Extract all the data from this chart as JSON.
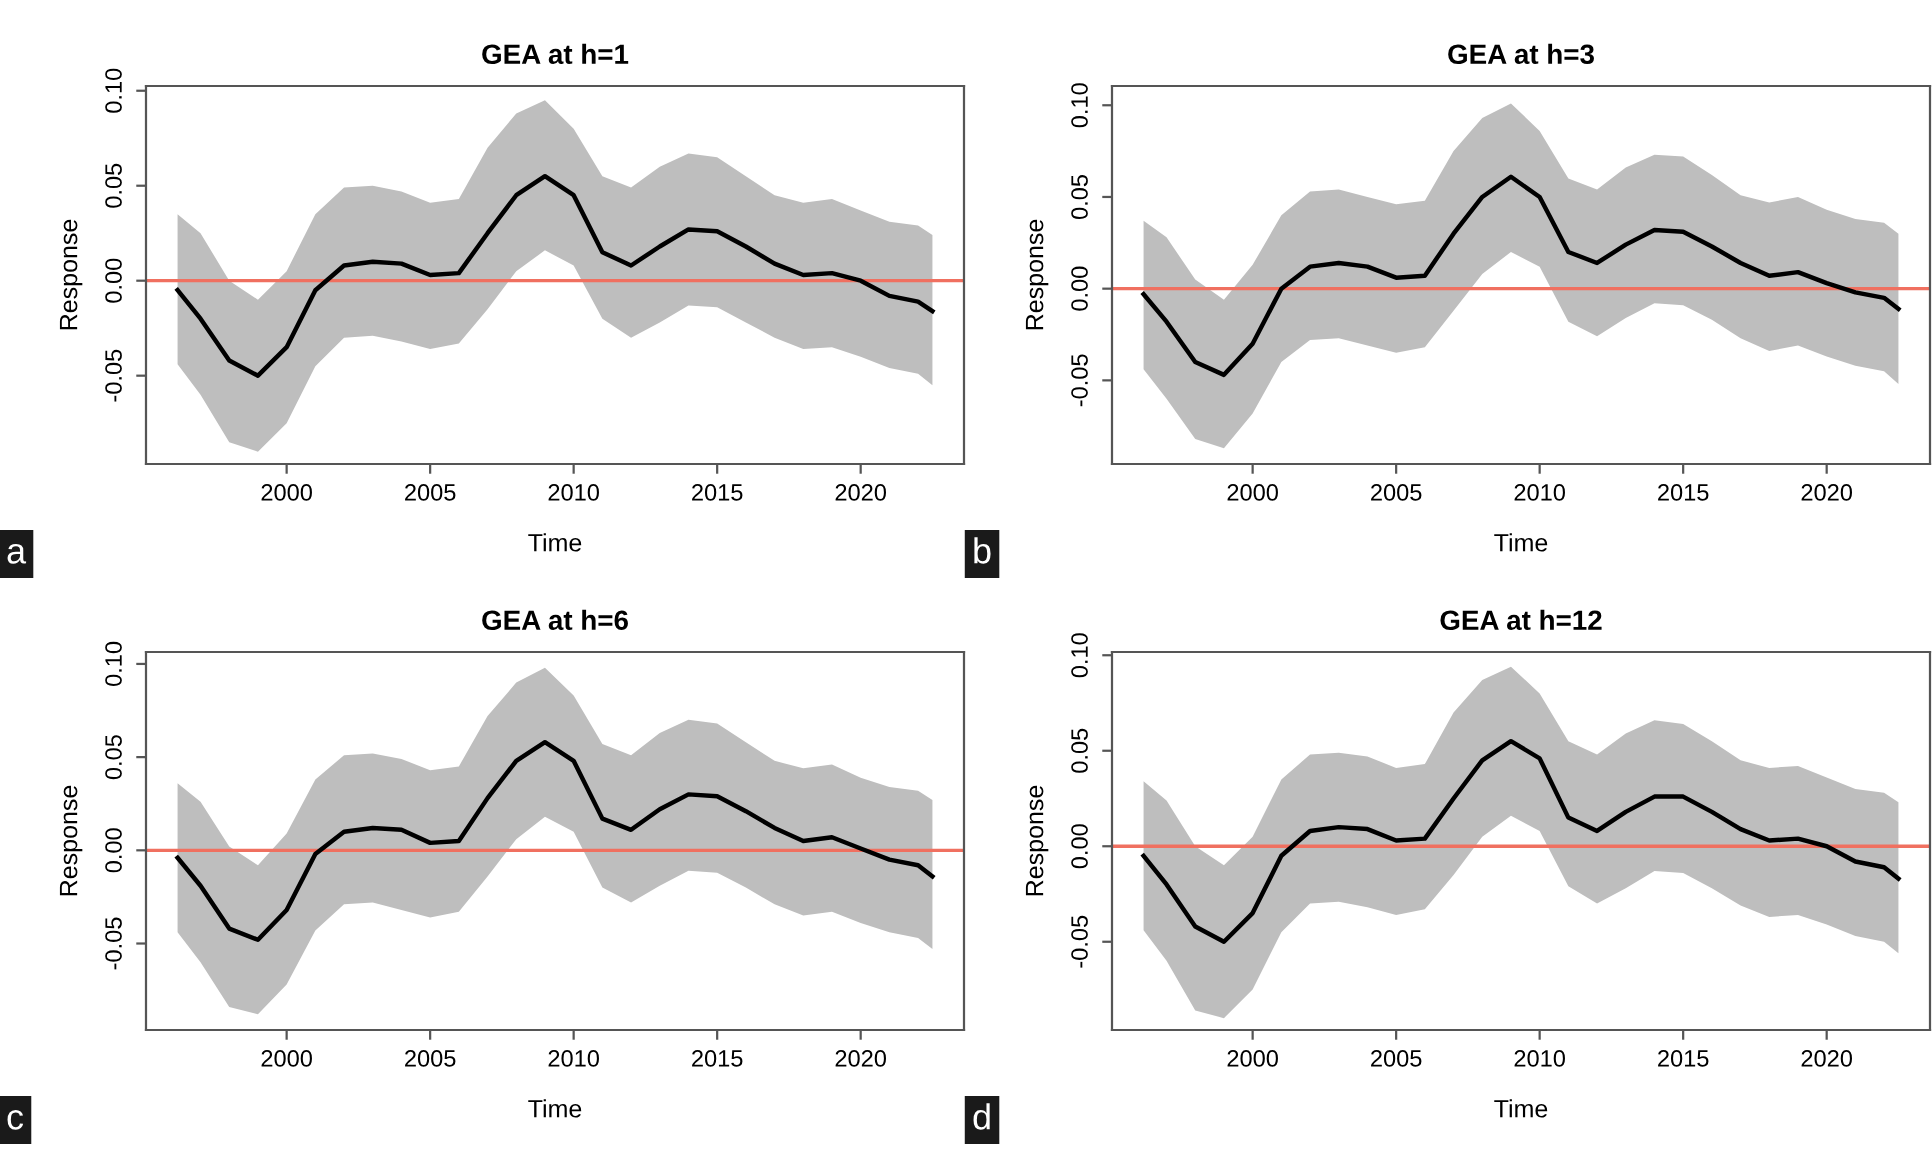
{
  "chart_data": [
    {
      "type": "line",
      "title": "GEA at h=1",
      "xlabel": "Time",
      "ylabel": "Response",
      "annotations": [
        "a"
      ],
      "x": [
        1996.2,
        1997,
        1998,
        1999,
        2000,
        2001,
        2002,
        2003,
        2004,
        2005,
        2006,
        2007,
        2008,
        2009,
        2010,
        2011,
        2012,
        2013,
        2014,
        2015,
        2016,
        2017,
        2018,
        2019,
        2020,
        2021,
        2022,
        2022.5
      ],
      "series": [
        {
          "color": "#000000",
          "values": [
            -0.005,
            -0.02,
            -0.042,
            -0.05,
            -0.035,
            -0.005,
            0.008,
            0.01,
            0.009,
            0.003,
            0.004,
            0.025,
            0.045,
            0.055,
            0.045,
            0.015,
            0.008,
            0.018,
            0.027,
            0.026,
            0.018,
            0.009,
            0.003,
            0.004,
            0.0,
            -0.008,
            -0.011,
            -0.016
          ],
          "upper": [
            0.035,
            0.025,
            0.0,
            -0.01,
            0.005,
            0.035,
            0.049,
            0.05,
            0.047,
            0.041,
            0.043,
            0.07,
            0.088,
            0.095,
            0.08,
            0.055,
            0.049,
            0.06,
            0.067,
            0.065,
            0.055,
            0.045,
            0.041,
            0.043,
            0.037,
            0.031,
            0.029,
            0.024
          ],
          "lower": [
            -0.044,
            -0.06,
            -0.085,
            -0.09,
            -0.075,
            -0.045,
            -0.03,
            -0.029,
            -0.032,
            -0.036,
            -0.033,
            -0.015,
            0.005,
            0.016,
            0.008,
            -0.02,
            -0.03,
            -0.022,
            -0.013,
            -0.014,
            -0.022,
            -0.03,
            -0.036,
            -0.035,
            -0.04,
            -0.046,
            -0.049,
            -0.055
          ]
        }
      ],
      "ref_lines": [
        {
          "axis": "y",
          "value": 0,
          "color": "#f07060"
        }
      ],
      "xlim": [
        1995.1,
        2023.6
      ],
      "ylim": [
        -0.0965,
        0.1025
      ],
      "xticks": [
        2000,
        2005,
        2010,
        2015,
        2020
      ],
      "yticks": [
        {
          "value": -0.05,
          "label": "-0.05"
        },
        {
          "value": 0,
          "label": "0.00"
        },
        {
          "value": 0.05,
          "label": "0.05"
        },
        {
          "value": 0.1,
          "label": "0.10"
        }
      ]
    },
    {
      "type": "line",
      "title": "GEA at h=3",
      "xlabel": "Time",
      "ylabel": "Response",
      "annotations": [
        "b"
      ],
      "x": [
        1996.2,
        1997,
        1998,
        1999,
        2000,
        2001,
        2002,
        2003,
        2004,
        2005,
        2006,
        2007,
        2008,
        2009,
        2010,
        2011,
        2012,
        2013,
        2014,
        2015,
        2016,
        2017,
        2018,
        2019,
        2020,
        2021,
        2022,
        2022.5
      ],
      "series": [
        {
          "color": "#000000",
          "values": [
            -0.003,
            -0.018,
            -0.04,
            -0.047,
            -0.03,
            0.0,
            0.012,
            0.014,
            0.012,
            0.006,
            0.007,
            0.03,
            0.05,
            0.061,
            0.05,
            0.02,
            0.014,
            0.024,
            0.032,
            0.031,
            0.023,
            0.014,
            0.007,
            0.009,
            0.003,
            -0.002,
            -0.005,
            -0.011
          ],
          "upper": [
            0.037,
            0.028,
            0.005,
            -0.006,
            0.013,
            0.04,
            0.053,
            0.054,
            0.05,
            0.046,
            0.048,
            0.075,
            0.093,
            0.101,
            0.086,
            0.06,
            0.054,
            0.066,
            0.073,
            0.072,
            0.062,
            0.051,
            0.047,
            0.05,
            0.043,
            0.038,
            0.036,
            0.03
          ],
          "lower": [
            -0.044,
            -0.06,
            -0.082,
            -0.087,
            -0.068,
            -0.04,
            -0.028,
            -0.027,
            -0.031,
            -0.035,
            -0.032,
            -0.012,
            0.008,
            0.02,
            0.012,
            -0.018,
            -0.026,
            -0.016,
            -0.008,
            -0.009,
            -0.017,
            -0.027,
            -0.034,
            -0.031,
            -0.037,
            -0.042,
            -0.045,
            -0.052
          ]
        }
      ],
      "ref_lines": [
        {
          "axis": "y",
          "value": 0,
          "color": "#f07060"
        }
      ],
      "xlim": [
        1995.1,
        2023.6
      ],
      "ylim": [
        -0.0956,
        0.1105
      ],
      "xticks": [
        2000,
        2005,
        2010,
        2015,
        2020
      ],
      "yticks": [
        {
          "value": -0.05,
          "label": "-0.05"
        },
        {
          "value": 0,
          "label": "0.00"
        },
        {
          "value": 0.05,
          "label": "0.05"
        },
        {
          "value": 0.1,
          "label": "0.10"
        }
      ]
    },
    {
      "type": "line",
      "title": "GEA at h=6",
      "xlabel": "Time",
      "ylabel": "Response",
      "annotations": [
        "c"
      ],
      "x": [
        1996.2,
        1997,
        1998,
        1999,
        2000,
        2001,
        2002,
        2003,
        2004,
        2005,
        2006,
        2007,
        2008,
        2009,
        2010,
        2011,
        2012,
        2013,
        2014,
        2015,
        2016,
        2017,
        2018,
        2019,
        2020,
        2021,
        2022,
        2022.5
      ],
      "series": [
        {
          "color": "#000000",
          "values": [
            -0.004,
            -0.019,
            -0.042,
            -0.048,
            -0.032,
            -0.002,
            0.01,
            0.012,
            0.011,
            0.004,
            0.005,
            0.028,
            0.048,
            0.058,
            0.048,
            0.017,
            0.011,
            0.022,
            0.03,
            0.029,
            0.021,
            0.012,
            0.005,
            0.007,
            0.001,
            -0.005,
            -0.008,
            -0.014
          ],
          "upper": [
            0.036,
            0.026,
            0.002,
            -0.008,
            0.009,
            0.038,
            0.051,
            0.052,
            0.049,
            0.043,
            0.045,
            0.072,
            0.09,
            0.098,
            0.083,
            0.057,
            0.051,
            0.063,
            0.07,
            0.068,
            0.058,
            0.048,
            0.044,
            0.046,
            0.039,
            0.034,
            0.032,
            0.027
          ],
          "lower": [
            -0.044,
            -0.06,
            -0.084,
            -0.088,
            -0.072,
            -0.043,
            -0.029,
            -0.028,
            -0.032,
            -0.036,
            -0.033,
            -0.014,
            0.006,
            0.018,
            0.01,
            -0.02,
            -0.028,
            -0.019,
            -0.011,
            -0.012,
            -0.02,
            -0.029,
            -0.035,
            -0.033,
            -0.039,
            -0.044,
            -0.047,
            -0.053
          ]
        }
      ],
      "ref_lines": [
        {
          "axis": "y",
          "value": 0,
          "color": "#f07060"
        }
      ],
      "xlim": [
        1995.1,
        2023.6
      ],
      "ylim": [
        -0.0964,
        0.1064
      ],
      "xticks": [
        2000,
        2005,
        2010,
        2015,
        2020
      ],
      "yticks": [
        {
          "value": -0.05,
          "label": "-0.05"
        },
        {
          "value": 0,
          "label": "0.00"
        },
        {
          "value": 0.05,
          "label": "0.05"
        },
        {
          "value": 0.1,
          "label": "0.10"
        }
      ]
    },
    {
      "type": "line",
      "title": "GEA at h=12",
      "xlabel": "Time",
      "ylabel": "Response",
      "annotations": [
        "d"
      ],
      "x": [
        1996.2,
        1997,
        1998,
        1999,
        2000,
        2001,
        2002,
        2003,
        2004,
        2005,
        2006,
        2007,
        2008,
        2009,
        2010,
        2011,
        2012,
        2013,
        2014,
        2015,
        2016,
        2017,
        2018,
        2019,
        2020,
        2021,
        2022,
        2022.5
      ],
      "series": [
        {
          "color": "#000000",
          "values": [
            -0.005,
            -0.02,
            -0.042,
            -0.05,
            -0.035,
            -0.005,
            0.008,
            0.01,
            0.009,
            0.003,
            0.004,
            0.025,
            0.045,
            0.055,
            0.046,
            0.015,
            0.008,
            0.018,
            0.026,
            0.026,
            0.018,
            0.009,
            0.003,
            0.004,
            0.0,
            -0.008,
            -0.011,
            -0.017
          ],
          "upper": [
            0.034,
            0.024,
            0.0,
            -0.01,
            0.005,
            0.035,
            0.048,
            0.049,
            0.047,
            0.041,
            0.043,
            0.07,
            0.087,
            0.094,
            0.08,
            0.055,
            0.048,
            0.059,
            0.066,
            0.064,
            0.055,
            0.045,
            0.041,
            0.042,
            0.036,
            0.03,
            0.028,
            0.023
          ],
          "lower": [
            -0.044,
            -0.06,
            -0.086,
            -0.09,
            -0.075,
            -0.045,
            -0.03,
            -0.029,
            -0.032,
            -0.036,
            -0.033,
            -0.015,
            0.005,
            0.016,
            0.008,
            -0.021,
            -0.03,
            -0.022,
            -0.013,
            -0.014,
            -0.022,
            -0.031,
            -0.037,
            -0.036,
            -0.041,
            -0.047,
            -0.05,
            -0.056
          ]
        }
      ],
      "ref_lines": [
        {
          "axis": "y",
          "value": 0,
          "color": "#f07060"
        }
      ],
      "xlim": [
        1995.1,
        2023.6
      ],
      "ylim": [
        -0.0962,
        0.1017
      ],
      "xticks": [
        2000,
        2005,
        2010,
        2015,
        2020
      ],
      "yticks": [
        {
          "value": -0.05,
          "label": "-0.05"
        },
        {
          "value": 0,
          "label": "0.00"
        },
        {
          "value": 0.05,
          "label": "0.05"
        },
        {
          "value": 0.1,
          "label": "0.10"
        }
      ]
    }
  ]
}
